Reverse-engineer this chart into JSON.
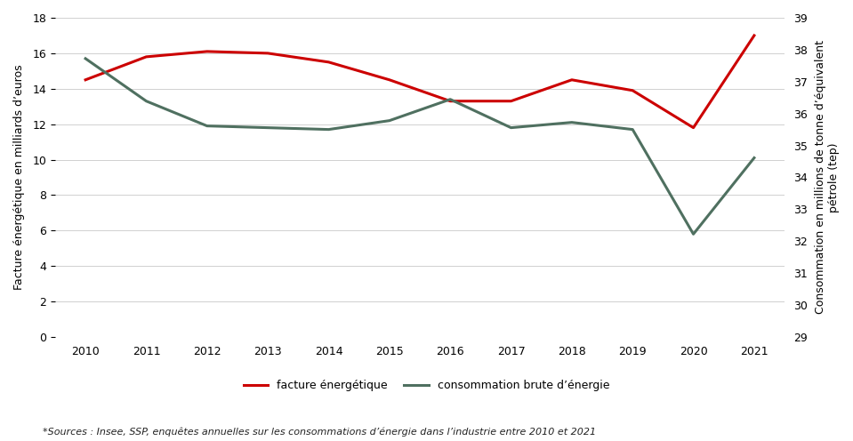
{
  "years": [
    2010,
    2011,
    2012,
    2013,
    2014,
    2015,
    2016,
    2017,
    2018,
    2019,
    2020,
    2021
  ],
  "facture_energetique": [
    14.5,
    15.8,
    16.1,
    16.0,
    15.5,
    14.5,
    13.3,
    13.3,
    14.5,
    13.9,
    11.8,
    17.0
  ],
  "consommation_brute_left": [
    15.7,
    13.3,
    11.9,
    11.8,
    11.7,
    12.2,
    13.4,
    11.8,
    12.1,
    11.7,
    5.8,
    10.1
  ],
  "left_ylim": [
    0,
    18
  ],
  "left_yticks": [
    0,
    2,
    4,
    6,
    8,
    10,
    12,
    14,
    16,
    18
  ],
  "right_ylim": [
    29,
    39
  ],
  "right_yticks": [
    29,
    30,
    31,
    32,
    33,
    34,
    35,
    36,
    37,
    38,
    39
  ],
  "color_red": "#cc0000",
  "color_teal": "#4f7060",
  "line_width": 2.2,
  "ylabel_left": "Facture énergétique en milliards d’euros",
  "ylabel_right": "Consommation en millions de tonne d’équivalent\npétrole (tep)",
  "legend_label1": "facture énergétique",
  "legend_label2": "consommation brute d’énergie",
  "source_text": "*Sources : Insee, SSP, enquêtes annuelles sur les consommations d’énergie dans l’industrie entre 2010 et 2021",
  "background_color": "#ffffff",
  "grid_color": "#d0d0d0",
  "tick_label_fontsize": 9,
  "axis_label_fontsize": 9,
  "legend_fontsize": 9,
  "source_fontsize": 8
}
